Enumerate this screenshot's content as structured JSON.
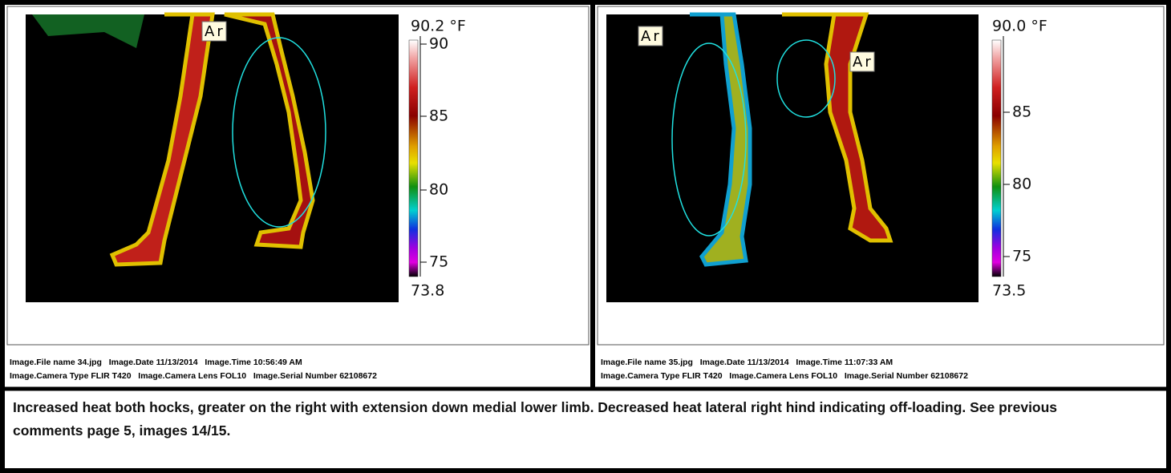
{
  "panels": [
    {
      "labels": [
        "Ar1"
      ],
      "scale": {
        "max": "90.2 °F",
        "ticks": [
          "90",
          "85",
          "80",
          "75"
        ],
        "min": "73.8"
      },
      "meta": [
        "Image.File name 34.jpg   Image.Date 11/13/2014   Image.Time 10:56:49 AM",
        "Image.Camera Type FLIR T420   Image.Camera Lens FOL10   Image.Serial Number 62108672"
      ]
    },
    {
      "labels": [
        "Ar",
        "Ar"
      ],
      "scale": {
        "max": "90.0 °F",
        "ticks": [
          "85",
          "80",
          "75"
        ],
        "min": "73.5"
      },
      "meta": [
        "Image.File name 35.jpg   Image.Date 11/13/2014   Image.Time 11:07:33 AM",
        "Image.Camera Type FLIR T420   Image.Camera Lens FOL10   Image.Serial Number 62108672"
      ]
    }
  ],
  "caption": "Increased heat both hocks, greater on the right with extension down medial lower limb. Decreased heat lateral right hind indicating off-loading. See previous comments page 5, images 14/15."
}
